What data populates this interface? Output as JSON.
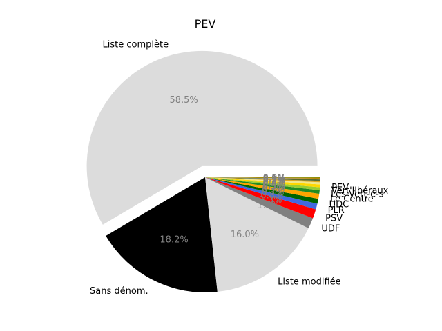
{
  "chart_data": {
    "type": "pie",
    "title": "PEV",
    "label_color": "#000000",
    "pct_color": "#808080",
    "exploded": "Liste complète",
    "slices": [
      {
        "name": "Liste complète",
        "value": 58.5,
        "color": "#dcdcdc",
        "pct_label": "58.5%",
        "show_name": true,
        "show_pct": true
      },
      {
        "name": "Sans dénom.",
        "value": 18.2,
        "color": "#000000",
        "pct_label": "18.2%",
        "show_name": true,
        "show_pct": true
      },
      {
        "name": "Liste modifiée",
        "value": 16.0,
        "color": "#dcdcdc",
        "pct_label": "16.0%",
        "show_name": true,
        "show_pct": true
      },
      {
        "name": "UDF",
        "value": 1.5,
        "color": "#808080",
        "pct_label": "1.5%",
        "show_name": true,
        "show_pct": true
      },
      {
        "name": "PSV",
        "value": 1.3,
        "color": "#ff0000",
        "pct_label": "1.3%",
        "show_name": true,
        "show_pct": true
      },
      {
        "name": "PLR",
        "value": 0.8,
        "color": "#4169e1",
        "pct_label": "0.8%",
        "show_name": true,
        "show_pct": true
      },
      {
        "name": "UDC",
        "value": 0.7,
        "color": "#006400",
        "pct_label": "0.7%",
        "show_name": true,
        "show_pct": true
      },
      {
        "name": "Le Centre",
        "value": 0.7,
        "color": "#ffa500",
        "pct_label": "0.7%",
        "show_name": true,
        "show_pct": true
      },
      {
        "name": "Les Vert-e-s",
        "value": 0.5,
        "color": "#228b22",
        "pct_label": "0.5%",
        "show_name": true,
        "show_pct": true
      },
      {
        "name": "Vert'libéraux",
        "value": 0.4,
        "color": "#9acd32",
        "pct_label": "0.4%",
        "show_name": true,
        "show_pct": true
      },
      {
        "name": "PEV",
        "value": 0.4,
        "color": "#ffd700",
        "pct_label": "0.4%",
        "show_name": true,
        "show_pct": true
      },
      {
        "name": "",
        "value": 0.3,
        "color": "#f0e68c",
        "pct_label": "0.3%",
        "show_name": false,
        "show_pct": true
      },
      {
        "name": "",
        "value": 0.2,
        "color": "#daa520",
        "pct_label": "0.2%",
        "show_name": false,
        "show_pct": true
      },
      {
        "name": "",
        "value": 0.2,
        "color": "#556b2f",
        "pct_label": "0.2%",
        "show_name": false,
        "show_pct": true
      },
      {
        "name": "",
        "value": 0.1,
        "color": "#a0a0a0",
        "pct_label": "0.1%",
        "show_name": false,
        "show_pct": true
      },
      {
        "name": "",
        "value": 0.1,
        "color": "#b8860b",
        "pct_label": "0.1%",
        "show_name": false,
        "show_pct": true
      },
      {
        "name": "",
        "value": 0.1,
        "color": "#8b8b00",
        "pct_label": "0.1%",
        "show_name": false,
        "show_pct": true
      },
      {
        "name": "",
        "value": 0.0,
        "color": "#696969",
        "pct_label": "0.0%",
        "show_name": false,
        "show_pct": true
      }
    ]
  }
}
